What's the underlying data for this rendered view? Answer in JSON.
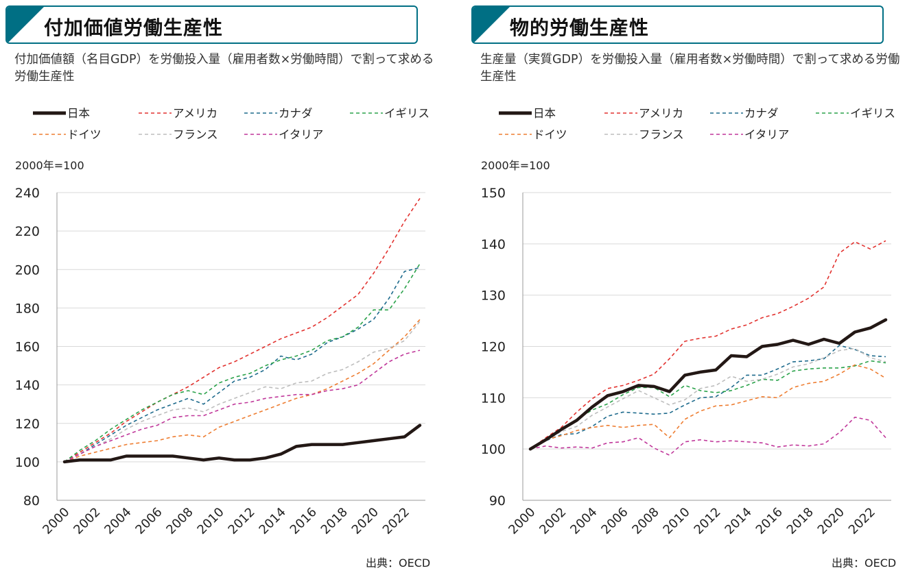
{
  "source_note": "出典：OECD",
  "legend_order": [
    "日本",
    "アメリカ",
    "カナダ",
    "イギリス",
    "ドイツ",
    "フランス",
    "イタリア"
  ],
  "series_style": {
    "日本": {
      "color": "#231815",
      "dashed": false
    },
    "アメリカ": {
      "color": "#e2312e",
      "dashed": true
    },
    "カナダ": {
      "color": "#1d6a8c",
      "dashed": true
    },
    "イギリス": {
      "color": "#2aa24a",
      "dashed": true
    },
    "ドイツ": {
      "color": "#ee7d31",
      "dashed": true
    },
    "フランス": {
      "color": "#bdbdbd",
      "dashed": true
    },
    "イタリア": {
      "color": "#c0379a",
      "dashed": true
    }
  },
  "chart_data": [
    {
      "type": "line",
      "title": "付加価値労働生産性",
      "subtitle": "付加価値額（名目GDP）を労働投入量（雇用者数×労働時間）で割って求める労働生産性",
      "ylabel": "2000年=100",
      "ylim": [
        80,
        240
      ],
      "yticks": [
        80,
        100,
        120,
        140,
        160,
        180,
        200,
        220,
        240
      ],
      "x": [
        2000,
        2001,
        2002,
        2003,
        2004,
        2005,
        2006,
        2007,
        2008,
        2009,
        2010,
        2011,
        2012,
        2013,
        2014,
        2015,
        2016,
        2017,
        2018,
        2019,
        2020,
        2021,
        2022,
        2023
      ],
      "xtick_labels": [
        "2000",
        "2002",
        "2004",
        "2006",
        "2008",
        "2010",
        "2012",
        "2014",
        "2016",
        "2018",
        "2020",
        "2022"
      ],
      "series": [
        {
          "name": "アメリカ",
          "values": [
            100,
            105,
            110,
            115,
            121,
            126,
            131,
            135,
            139,
            144,
            149,
            152,
            156,
            160,
            164,
            167,
            170,
            175,
            181,
            187,
            198,
            211,
            225,
            237
          ]
        },
        {
          "name": "カナダ",
          "values": [
            100,
            104,
            109,
            114,
            119,
            123,
            127,
            130,
            133,
            130,
            136,
            142,
            144,
            148,
            155,
            153,
            156,
            162,
            165,
            169,
            174,
            185,
            199,
            201
          ]
        },
        {
          "name": "イギリス",
          "values": [
            100,
            106,
            111,
            117,
            122,
            127,
            131,
            135,
            137,
            135,
            141,
            144,
            146,
            150,
            153,
            155,
            158,
            163,
            165,
            170,
            179,
            179,
            190,
            203
          ]
        },
        {
          "name": "ドイツ",
          "values": [
            100,
            103,
            105,
            107,
            109,
            110,
            111,
            113,
            114,
            113,
            118,
            121,
            124,
            127,
            130,
            133,
            135,
            138,
            142,
            146,
            151,
            158,
            165,
            174
          ]
        },
        {
          "name": "フランス",
          "values": [
            100,
            104,
            108,
            112,
            117,
            121,
            124,
            127,
            128,
            126,
            130,
            133,
            136,
            139,
            138,
            141,
            142,
            146,
            148,
            152,
            157,
            159,
            163,
            173
          ]
        },
        {
          "name": "イタリア",
          "values": [
            100,
            104,
            108,
            111,
            114,
            117,
            119,
            123,
            124,
            124,
            127,
            130,
            131,
            133,
            134,
            135,
            135,
            137,
            138,
            140,
            146,
            152,
            156,
            158
          ]
        },
        {
          "name": "日本",
          "values": [
            100,
            101,
            101,
            101,
            103,
            103,
            103,
            103,
            102,
            101,
            102,
            101,
            101,
            102,
            104,
            108,
            109,
            109,
            109,
            110,
            111,
            112,
            113,
            119
          ]
        }
      ]
    },
    {
      "type": "line",
      "title": "物的労働生産性",
      "subtitle": "生産量（実質GDP）を労働投入量（雇用者数×労働時間）で割って求める労働生産性",
      "ylabel": "2000年=100",
      "ylim": [
        90,
        150
      ],
      "yticks": [
        90,
        100,
        110,
        120,
        130,
        140,
        150
      ],
      "x": [
        2000,
        2001,
        2002,
        2003,
        2004,
        2005,
        2006,
        2007,
        2008,
        2009,
        2010,
        2011,
        2012,
        2013,
        2014,
        2015,
        2016,
        2017,
        2018,
        2019,
        2020,
        2021,
        2022,
        2023
      ],
      "xtick_labels": [
        "2000",
        "2002",
        "2004",
        "2006",
        "2008",
        "2010",
        "2012",
        "2014",
        "2016",
        "2018",
        "2020",
        "2022"
      ],
      "series": [
        {
          "name": "アメリカ",
          "values": [
            100,
            102.2,
            104.2,
            107.2,
            109.8,
            111.8,
            112.4,
            113.4,
            114.6,
            117.6,
            121.0,
            121.6,
            122.0,
            123.4,
            124.2,
            125.6,
            126.4,
            127.8,
            129.4,
            131.6,
            138.2,
            140.4,
            139.0,
            140.6
          ]
        },
        {
          "name": "カナダ",
          "values": [
            100,
            101.6,
            102.8,
            103.0,
            104.4,
            106.4,
            107.2,
            107.0,
            106.8,
            107.0,
            108.6,
            110.0,
            110.2,
            112.0,
            114.4,
            114.4,
            115.6,
            117.0,
            117.2,
            117.6,
            120.2,
            119.4,
            118.2,
            118.0
          ]
        },
        {
          "name": "イギリス",
          "values": [
            100,
            101.6,
            103.6,
            105.8,
            107.6,
            108.8,
            110.6,
            112.0,
            112.0,
            110.2,
            112.4,
            111.4,
            111.0,
            111.4,
            112.4,
            113.6,
            113.4,
            115.2,
            115.6,
            115.8,
            115.8,
            116.2,
            117.2,
            116.8
          ]
        },
        {
          "name": "ドイツ",
          "values": [
            100,
            101.8,
            102.6,
            103.6,
            104.2,
            104.6,
            104.2,
            104.6,
            104.8,
            102.2,
            105.8,
            107.4,
            108.4,
            108.6,
            109.4,
            110.2,
            110.0,
            112.0,
            112.8,
            113.2,
            114.6,
            116.4,
            115.6,
            113.8
          ]
        },
        {
          "name": "フランス",
          "values": [
            100,
            101.6,
            103.4,
            104.4,
            106.6,
            108.2,
            109.8,
            111.4,
            110.0,
            108.6,
            109.6,
            111.8,
            112.4,
            114.2,
            113.2,
            113.6,
            114.6,
            116.0,
            116.6,
            117.8,
            119.2,
            119.6,
            117.8,
            117.0
          ]
        },
        {
          "name": "イタリア",
          "values": [
            100,
            100.6,
            100.2,
            100.4,
            100.2,
            101.2,
            101.4,
            102.2,
            100.2,
            98.8,
            101.4,
            101.8,
            101.4,
            101.6,
            101.4,
            101.2,
            100.4,
            100.8,
            100.6,
            101.0,
            103.2,
            106.2,
            105.6,
            102.2
          ]
        },
        {
          "name": "日本",
          "values": [
            100,
            101.8,
            103.8,
            105.6,
            108.2,
            110.4,
            111.2,
            112.4,
            112.2,
            111.2,
            114.4,
            115.0,
            115.4,
            118.2,
            118.0,
            120.0,
            120.4,
            121.2,
            120.4,
            121.4,
            120.6,
            122.8,
            123.6,
            125.2
          ]
        }
      ]
    }
  ]
}
